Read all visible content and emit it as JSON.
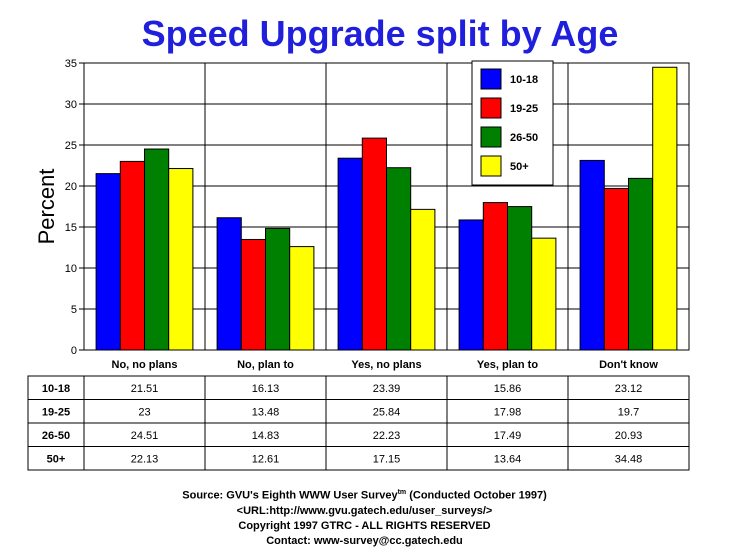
{
  "chart_data": {
    "type": "bar",
    "title": "Speed Upgrade split by Age",
    "xlabel": "",
    "ylabel": "Percent",
    "ylim": [
      0,
      35
    ],
    "yticks": [
      0,
      5,
      10,
      15,
      20,
      25,
      30,
      35
    ],
    "categories": [
      "No, no plans",
      "No, plan to",
      "Yes, no plans",
      "Yes, plan to",
      "Don't know"
    ],
    "series": [
      {
        "name": "10-18",
        "color": "#0000ff",
        "values": [
          21.51,
          16.13,
          23.39,
          15.86,
          23.12
        ],
        "labels": [
          "21.51",
          "16.13",
          "23.39",
          "15.86",
          "23.12"
        ]
      },
      {
        "name": "19-25",
        "color": "#ff0000",
        "values": [
          23,
          13.48,
          25.84,
          17.98,
          19.7
        ],
        "labels": [
          "23",
          "13.48",
          "25.84",
          "17.98",
          "19.7"
        ]
      },
      {
        "name": "26-50",
        "color": "#008000",
        "values": [
          24.51,
          14.83,
          22.23,
          17.49,
          20.93
        ],
        "labels": [
          "24.51",
          "14.83",
          "22.23",
          "17.49",
          "20.93"
        ]
      },
      {
        "name": "50+",
        "color": "#ffff00",
        "values": [
          22.13,
          12.61,
          17.15,
          13.64,
          34.48
        ],
        "labels": [
          "22.13",
          "12.61",
          "17.15",
          "13.64",
          "34.48"
        ]
      }
    ],
    "grid": true,
    "legend": "top-right",
    "table_below": true
  },
  "footer": {
    "source_prefix": "Source: GVU's Eighth WWW User Survey",
    "source_tm": "tm",
    "source_suffix": " (Conducted October 1997)",
    "url": "<URL:http://www.gvu.gatech.edu/user_surveys/>",
    "copyright": "Copyright 1997 GTRC - ALL RIGHTS RESERVED",
    "contact": "Contact: www-survey@cc.gatech.edu"
  }
}
